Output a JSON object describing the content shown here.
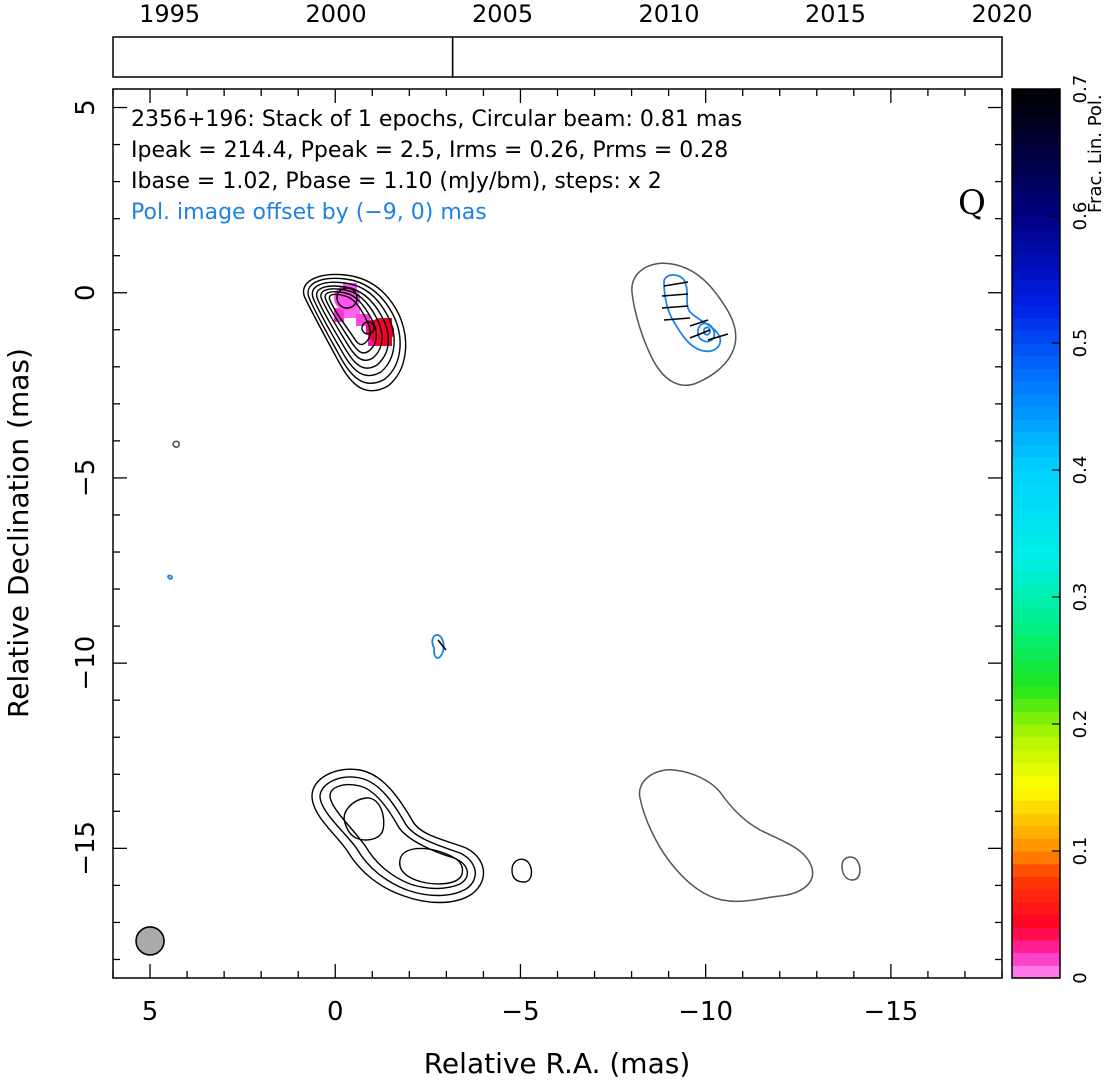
{
  "chart_data": {
    "type": "contour",
    "info_lines": [
      "2356+196: Stack of 1 epochs, Circular beam: 0.81 mas",
      "Ipeak = 214.4, Ppeak = 2.5, Irms = 0.26, Prms = 0.28",
      "Ibase = 1.02, Pbase = 1.10 (mJy/bm), steps: x 2"
    ],
    "offset_note": "Pol. image offset by (−9, 0) mas",
    "stokes_label": "Q",
    "xlabel": "Relative R.A. (mas)",
    "ylabel": "Relative Declination (mas)",
    "xlim": [
      6,
      -18
    ],
    "ylim": [
      -18.5,
      5.5
    ],
    "x_ticks": [
      5,
      0,
      -5,
      -10,
      -15
    ],
    "y_ticks": [
      5,
      0,
      -5,
      -10,
      -15
    ],
    "x_tick_labels": [
      "5",
      "0",
      "−5",
      "−10",
      "−15"
    ],
    "y_tick_labels": [
      "5",
      "0",
      "−5",
      "−10",
      "−15"
    ],
    "timeline": {
      "range": [
        1993.3,
        2020
      ],
      "ticks": [
        "1995",
        "2000",
        "2005",
        "2010",
        "2015",
        "2020"
      ],
      "epochs": [
        2003.5
      ]
    },
    "colorbar": {
      "label": "Frac. Lin. Pol.",
      "range": [
        0,
        0.7
      ],
      "tick_labels": [
        "0",
        "0.1",
        "0.2",
        "0.3",
        "0.4",
        "0.5",
        "0.6",
        "0.7"
      ]
    },
    "beam": {
      "ra": 5.0,
      "dec": -17.5,
      "diameter_mas": 0.81
    },
    "colors": {
      "stokes_i_contour": "#000000",
      "pol_contour": "#1e82e6",
      "pol_base_contour": "#555555",
      "beam_fill": "#aaaaaa",
      "info_blue": "#1e82e6"
    }
  }
}
